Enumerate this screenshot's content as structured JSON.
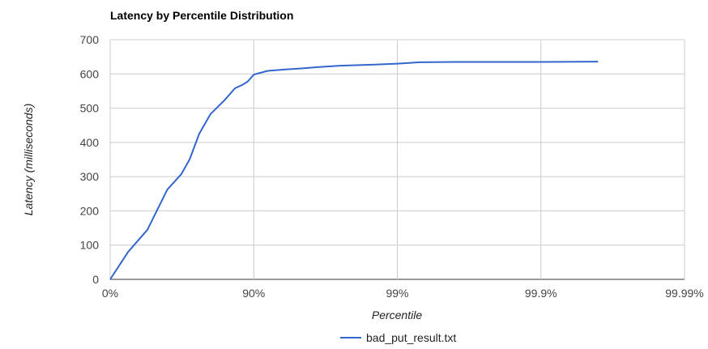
{
  "chart_data": {
    "type": "line",
    "title": "Latency by Percentile Distribution",
    "xlabel": "Percentile",
    "ylabel": "Latency (milliseconds)",
    "x_scale": "log-inverse-percentile",
    "x_ticks": [
      "0%",
      "90%",
      "99%",
      "99.9%",
      "99.99%"
    ],
    "y_ticks": [
      "0",
      "100",
      "200",
      "300",
      "400",
      "500",
      "600",
      "700"
    ],
    "ylim": [
      0,
      700
    ],
    "grid": true,
    "legend": {
      "position": "bottom"
    },
    "series": [
      {
        "name": "bad_put_result.txt",
        "color": "#3366cc",
        "points": [
          {
            "x": 0,
            "y": 0
          },
          {
            "x": 25,
            "y": 80
          },
          {
            "x": 45,
            "y": 145
          },
          {
            "x": 60,
            "y": 262
          },
          {
            "x": 68,
            "y": 307
          },
          {
            "x": 72,
            "y": 350
          },
          {
            "x": 76,
            "y": 425
          },
          {
            "x": 80,
            "y": 483
          },
          {
            "x": 84,
            "y": 523
          },
          {
            "x": 86.5,
            "y": 558
          },
          {
            "x": 88,
            "y": 568
          },
          {
            "x": 89,
            "y": 578
          },
          {
            "x": 90,
            "y": 598
          },
          {
            "x": 92,
            "y": 609
          },
          {
            "x": 94,
            "y": 613
          },
          {
            "x": 95,
            "y": 615
          },
          {
            "x": 96.5,
            "y": 620
          },
          {
            "x": 97.5,
            "y": 624
          },
          {
            "x": 98.5,
            "y": 627
          },
          {
            "x": 99,
            "y": 630
          },
          {
            "x": 99.3,
            "y": 634
          },
          {
            "x": 99.6,
            "y": 635
          },
          {
            "x": 99.9,
            "y": 635
          },
          {
            "x": 99.96,
            "y": 636
          }
        ]
      }
    ]
  }
}
